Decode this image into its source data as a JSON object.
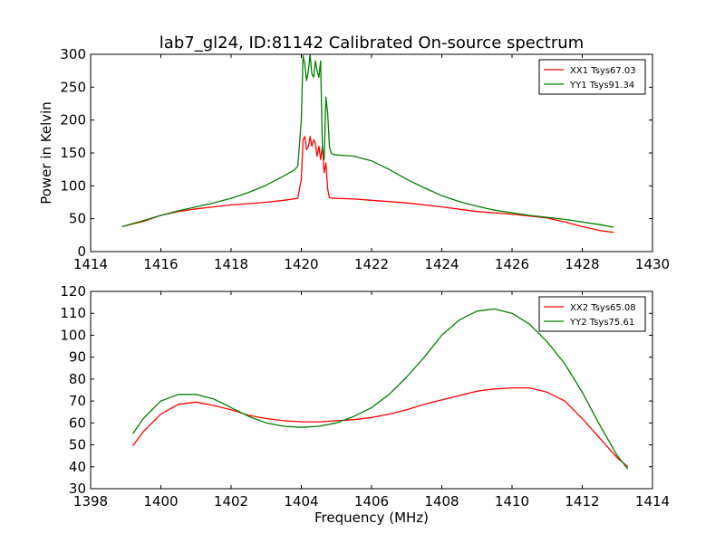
{
  "title": "lab7_gl24, ID:81142 Calibrated On-source spectrum",
  "ylabel": "Power in Kelvin",
  "xlabel": "Frequency (MHz)",
  "colors": {
    "red": "#ff0000",
    "green": "#008000"
  },
  "chart_data": [
    {
      "type": "line",
      "title": "lab7_gl24, ID:81142 Calibrated On-source spectrum",
      "ylabel": "Power in Kelvin",
      "xlabel": "",
      "xlim": [
        1414,
        1430
      ],
      "ylim": [
        0,
        300
      ],
      "xticks": [
        1414,
        1416,
        1418,
        1420,
        1422,
        1424,
        1426,
        1428,
        1430
      ],
      "yticks": [
        0,
        50,
        100,
        150,
        200,
        250,
        300
      ],
      "grid": false,
      "legend_position": "top-right",
      "series": [
        {
          "name": "XX1 Tsys67.03",
          "color": "#ff0000",
          "x": [
            1414.9,
            1415.5,
            1416.0,
            1416.5,
            1417.0,
            1417.5,
            1418.0,
            1418.5,
            1419.0,
            1419.5,
            1419.9,
            1420.0,
            1420.05,
            1420.1,
            1420.15,
            1420.2,
            1420.25,
            1420.3,
            1420.35,
            1420.4,
            1420.45,
            1420.5,
            1420.55,
            1420.6,
            1420.65,
            1420.7,
            1420.75,
            1420.8,
            1420.9,
            1421.0,
            1421.5,
            1422.0,
            1423.0,
            1424.0,
            1425.0,
            1426.0,
            1427.0,
            1427.5,
            1428.0,
            1428.5,
            1428.9
          ],
          "y": [
            38,
            46,
            55,
            61,
            65,
            68,
            71,
            73,
            75,
            78,
            81,
            110,
            170,
            175,
            155,
            160,
            175,
            160,
            170,
            165,
            145,
            160,
            140,
            160,
            120,
            135,
            95,
            82,
            81,
            81,
            80,
            78,
            74,
            68,
            61,
            57,
            51,
            45,
            38,
            32,
            29
          ]
        },
        {
          "name": "YY1 Tsys91.34",
          "color": "#008000",
          "x": [
            1414.9,
            1415.5,
            1416.0,
            1416.5,
            1417.0,
            1417.5,
            1418.0,
            1418.5,
            1419.0,
            1419.5,
            1419.8,
            1419.9,
            1420.0,
            1420.05,
            1420.1,
            1420.15,
            1420.2,
            1420.25,
            1420.3,
            1420.35,
            1420.4,
            1420.45,
            1420.5,
            1420.55,
            1420.6,
            1420.65,
            1420.7,
            1420.75,
            1420.8,
            1420.85,
            1420.9,
            1421.0,
            1421.5,
            1422.0,
            1422.5,
            1423.0,
            1423.5,
            1424.0,
            1424.5,
            1425.0,
            1425.5,
            1426.0,
            1426.5,
            1427.0,
            1427.5,
            1428.0,
            1428.5,
            1428.9
          ],
          "y": [
            38,
            47,
            55,
            62,
            68,
            74,
            81,
            90,
            101,
            115,
            124,
            130,
            200,
            298,
            285,
            260,
            275,
            300,
            270,
            265,
            290,
            275,
            265,
            290,
            160,
            140,
            235,
            210,
            160,
            150,
            148,
            147,
            145,
            138,
            125,
            110,
            97,
            85,
            76,
            69,
            63,
            59,
            55,
            52,
            49,
            45,
            41,
            37
          ]
        }
      ]
    },
    {
      "type": "line",
      "title": "",
      "ylabel": "",
      "xlabel": "Frequency (MHz)",
      "xlim": [
        1398,
        1414
      ],
      "ylim": [
        30,
        120
      ],
      "xticks": [
        1398,
        1400,
        1402,
        1404,
        1406,
        1408,
        1410,
        1412,
        1414
      ],
      "yticks": [
        30,
        40,
        50,
        60,
        70,
        80,
        90,
        100,
        110,
        120
      ],
      "grid": false,
      "legend_position": "top-right",
      "series": [
        {
          "name": "XX2 Tsys65.08",
          "color": "#ff0000",
          "x": [
            1399.2,
            1399.5,
            1400.0,
            1400.5,
            1401.0,
            1401.5,
            1402.0,
            1402.5,
            1403.0,
            1403.5,
            1404.0,
            1404.5,
            1405.0,
            1405.5,
            1406.0,
            1406.5,
            1407.0,
            1407.5,
            1408.0,
            1408.5,
            1409.0,
            1409.5,
            1410.0,
            1410.5,
            1411.0,
            1411.5,
            1412.0,
            1412.5,
            1413.0,
            1413.3
          ],
          "y": [
            49.5,
            56,
            64,
            68.5,
            69.5,
            68,
            66,
            63.5,
            62,
            61,
            60.5,
            60.5,
            61,
            61.5,
            62.5,
            64,
            66,
            68.5,
            70.5,
            72.5,
            74.5,
            75.5,
            76,
            76,
            74,
            70,
            62,
            53,
            44,
            40
          ]
        },
        {
          "name": "YY2 Tsys75.61",
          "color": "#008000",
          "x": [
            1399.2,
            1399.5,
            1400.0,
            1400.5,
            1401.0,
            1401.5,
            1402.0,
            1402.5,
            1403.0,
            1403.5,
            1404.0,
            1404.5,
            1405.0,
            1405.5,
            1406.0,
            1406.5,
            1407.0,
            1407.5,
            1408.0,
            1408.5,
            1409.0,
            1409.5,
            1410.0,
            1410.5,
            1411.0,
            1411.5,
            1412.0,
            1412.5,
            1413.0,
            1413.3
          ],
          "y": [
            55,
            62,
            70,
            73,
            73,
            71,
            67,
            63,
            60,
            58.5,
            58,
            58.5,
            60,
            63,
            67,
            73,
            81,
            90,
            100,
            107,
            111,
            112,
            110,
            105,
            97,
            87,
            74,
            59,
            45,
            39
          ]
        }
      ]
    }
  ]
}
